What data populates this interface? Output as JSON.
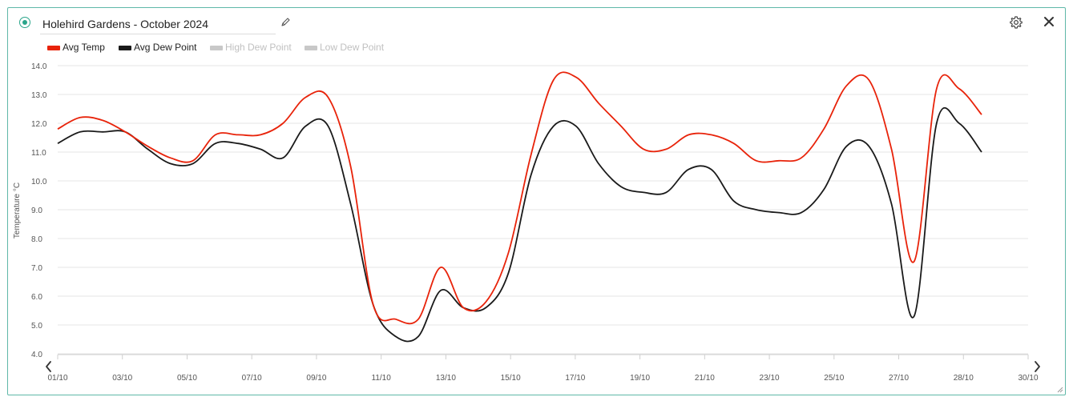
{
  "header": {
    "title": "Holehird Gardens - October 2024",
    "status_icon": "status-dot-icon",
    "edit_icon": "pencil-icon",
    "settings_icon": "gear-icon",
    "close_icon": "close-icon"
  },
  "colors": {
    "accent": "#2aa58a",
    "border": "#5fb8a8",
    "avg_temp": "#e8230a",
    "avg_dew_point": "#1a1a1a",
    "disabled": "#c8c8c8"
  },
  "legend": [
    {
      "label": "Avg Temp",
      "color": "#e8230a",
      "enabled": true
    },
    {
      "label": "Avg Dew Point",
      "color": "#1a1a1a",
      "enabled": true
    },
    {
      "label": "High Dew Point",
      "color": "#c8c8c8",
      "enabled": false
    },
    {
      "label": "Low Dew Point",
      "color": "#c8c8c8",
      "enabled": false
    }
  ],
  "navigation": {
    "prev_icon": "chevron-left-icon",
    "next_icon": "chevron-right-icon"
  },
  "chart_data": {
    "type": "line",
    "ylabel": "Temperature °C",
    "xlabel": "",
    "ylim": [
      4.0,
      14.0
    ],
    "y_ticks": [
      "4.0",
      "5.0",
      "6.0",
      "7.0",
      "8.0",
      "9.0",
      "10.0",
      "11.0",
      "12.0",
      "13.0",
      "14.0"
    ],
    "x_tick_labels": [
      "01/10",
      "03/10",
      "05/10",
      "07/10",
      "09/10",
      "11/10",
      "13/10",
      "15/10",
      "17/10",
      "19/10",
      "21/10",
      "23/10",
      "25/10",
      "27/10",
      "28/10",
      "30/10"
    ],
    "grid": true,
    "legend_position": "top-left",
    "series": [
      {
        "name": "Avg Temp",
        "color": "#e8230a",
        "values": [
          11.8,
          12.2,
          12.1,
          11.7,
          11.2,
          10.8,
          10.7,
          11.6,
          11.6,
          11.6,
          12.0,
          12.9,
          12.9,
          10.5,
          5.7,
          5.2,
          5.2,
          7.0,
          5.6,
          5.8,
          7.5,
          10.9,
          13.5,
          13.6,
          12.7,
          11.9,
          11.1,
          11.1,
          11.6,
          11.6,
          11.3,
          10.7,
          10.7,
          10.8,
          11.8,
          13.3,
          13.5,
          11.1,
          7.2,
          13.2,
          13.2,
          12.3
        ]
      },
      {
        "name": "Avg Dew Point",
        "color": "#1a1a1a",
        "values": [
          11.3,
          11.7,
          11.7,
          11.7,
          11.1,
          10.6,
          10.6,
          11.3,
          11.3,
          11.1,
          10.8,
          11.9,
          11.9,
          9.2,
          5.7,
          4.6,
          4.6,
          6.2,
          5.6,
          5.6,
          6.8,
          10.2,
          11.9,
          11.9,
          10.6,
          9.8,
          9.6,
          9.6,
          10.4,
          10.4,
          9.3,
          9.0,
          8.9,
          8.9,
          9.7,
          11.2,
          11.2,
          9.2,
          5.3,
          12.0,
          12.0,
          11.0
        ]
      }
    ]
  }
}
